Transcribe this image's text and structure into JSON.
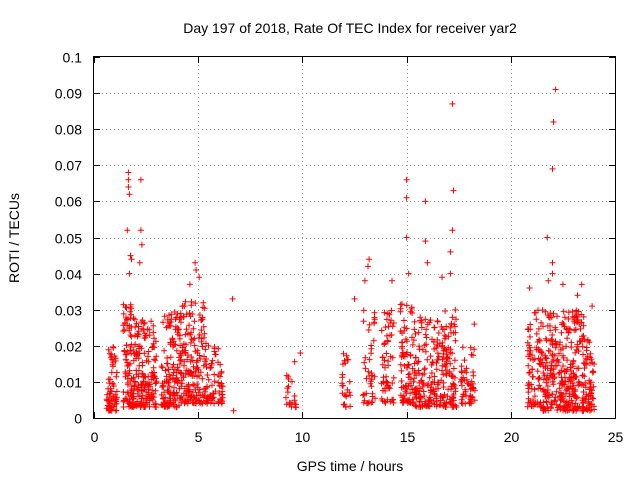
{
  "chart_data": {
    "type": "scatter",
    "title": "Day 197 of 2018, Rate Of TEC Index for receiver yar2",
    "xlabel": "GPS time / hours",
    "ylabel": "ROTI / TECUs",
    "xlim": [
      0,
      25
    ],
    "ylim": [
      0,
      0.1
    ],
    "xticks": [
      0,
      5,
      10,
      15,
      20,
      25
    ],
    "xtick_labels": [
      "0",
      "5",
      "10",
      "15",
      "20",
      "25"
    ],
    "yticks": [
      0,
      0.01,
      0.02,
      0.03,
      0.04,
      0.05,
      0.06,
      0.07,
      0.08,
      0.09,
      0.1
    ],
    "ytick_labels": [
      "0",
      "0.01",
      "0.02",
      "0.03",
      "0.04",
      "0.05",
      "0.06",
      "0.07",
      "0.08",
      "0.09",
      "0.1"
    ],
    "grid": true,
    "marker": "+",
    "color": "#ff0000",
    "dense_clusters": [
      {
        "x_range": [
          0.6,
          1.1
        ],
        "y_range": [
          0.002,
          0.02
        ],
        "count": 70
      },
      {
        "x_range": [
          1.4,
          2.0
        ],
        "y_range": [
          0.003,
          0.032
        ],
        "count": 110
      },
      {
        "x_range": [
          2.0,
          3.0
        ],
        "y_range": [
          0.003,
          0.028
        ],
        "count": 150
      },
      {
        "x_range": [
          3.2,
          4.2
        ],
        "y_range": [
          0.003,
          0.03
        ],
        "count": 150
      },
      {
        "x_range": [
          4.2,
          5.4
        ],
        "y_range": [
          0.004,
          0.033
        ],
        "count": 160
      },
      {
        "x_range": [
          5.4,
          6.2
        ],
        "y_range": [
          0.004,
          0.02
        ],
        "count": 60
      },
      {
        "x_range": [
          9.2,
          9.7
        ],
        "y_range": [
          0.003,
          0.016
        ],
        "count": 20
      },
      {
        "x_range": [
          11.9,
          12.3
        ],
        "y_range": [
          0.003,
          0.02
        ],
        "count": 25
      },
      {
        "x_range": [
          12.9,
          13.5
        ],
        "y_range": [
          0.004,
          0.03
        ],
        "count": 40
      },
      {
        "x_range": [
          13.8,
          14.4
        ],
        "y_range": [
          0.004,
          0.03
        ],
        "count": 60
      },
      {
        "x_range": [
          14.7,
          15.4
        ],
        "y_range": [
          0.004,
          0.032
        ],
        "count": 90
      },
      {
        "x_range": [
          15.4,
          16.4
        ],
        "y_range": [
          0.003,
          0.028
        ],
        "count": 110
      },
      {
        "x_range": [
          16.4,
          17.4
        ],
        "y_range": [
          0.003,
          0.03
        ],
        "count": 130
      },
      {
        "x_range": [
          17.6,
          18.3
        ],
        "y_range": [
          0.004,
          0.02
        ],
        "count": 55
      },
      {
        "x_range": [
          20.8,
          21.5
        ],
        "y_range": [
          0.003,
          0.03
        ],
        "count": 80
      },
      {
        "x_range": [
          21.5,
          22.5
        ],
        "y_range": [
          0.002,
          0.03
        ],
        "count": 140
      },
      {
        "x_range": [
          22.5,
          23.5
        ],
        "y_range": [
          0.002,
          0.03
        ],
        "count": 170
      },
      {
        "x_range": [
          23.5,
          24.0
        ],
        "y_range": [
          0.002,
          0.022
        ],
        "count": 60
      }
    ],
    "notable_points": [
      {
        "x": 1.65,
        "y": 0.068
      },
      {
        "x": 1.65,
        "y": 0.066
      },
      {
        "x": 1.65,
        "y": 0.064
      },
      {
        "x": 1.7,
        "y": 0.062
      },
      {
        "x": 2.25,
        "y": 0.066
      },
      {
        "x": 1.6,
        "y": 0.052
      },
      {
        "x": 2.25,
        "y": 0.052
      },
      {
        "x": 2.3,
        "y": 0.048
      },
      {
        "x": 1.75,
        "y": 0.045
      },
      {
        "x": 1.8,
        "y": 0.044
      },
      {
        "x": 1.7,
        "y": 0.04
      },
      {
        "x": 2.2,
        "y": 0.043
      },
      {
        "x": 4.85,
        "y": 0.043
      },
      {
        "x": 4.9,
        "y": 0.041
      },
      {
        "x": 5.05,
        "y": 0.039
      },
      {
        "x": 4.6,
        "y": 0.037
      },
      {
        "x": 6.65,
        "y": 0.033
      },
      {
        "x": 9.9,
        "y": 0.018
      },
      {
        "x": 13.2,
        "y": 0.044
      },
      {
        "x": 13.15,
        "y": 0.042
      },
      {
        "x": 13.0,
        "y": 0.038
      },
      {
        "x": 12.5,
        "y": 0.033
      },
      {
        "x": 15.0,
        "y": 0.066
      },
      {
        "x": 15.0,
        "y": 0.061
      },
      {
        "x": 15.9,
        "y": 0.06
      },
      {
        "x": 15.0,
        "y": 0.05
      },
      {
        "x": 15.9,
        "y": 0.049
      },
      {
        "x": 16.0,
        "y": 0.043
      },
      {
        "x": 15.1,
        "y": 0.04
      },
      {
        "x": 14.3,
        "y": 0.038
      },
      {
        "x": 17.2,
        "y": 0.087
      },
      {
        "x": 17.25,
        "y": 0.063
      },
      {
        "x": 17.2,
        "y": 0.052
      },
      {
        "x": 17.1,
        "y": 0.046
      },
      {
        "x": 16.7,
        "y": 0.039
      },
      {
        "x": 17.1,
        "y": 0.04
      },
      {
        "x": 18.25,
        "y": 0.026
      },
      {
        "x": 22.15,
        "y": 0.091
      },
      {
        "x": 22.05,
        "y": 0.082
      },
      {
        "x": 22.0,
        "y": 0.069
      },
      {
        "x": 21.75,
        "y": 0.05
      },
      {
        "x": 22.0,
        "y": 0.043
      },
      {
        "x": 22.0,
        "y": 0.04
      },
      {
        "x": 22.5,
        "y": 0.037
      },
      {
        "x": 21.8,
        "y": 0.038
      },
      {
        "x": 20.9,
        "y": 0.036
      },
      {
        "x": 23.4,
        "y": 0.037
      },
      {
        "x": 23.2,
        "y": 0.034
      },
      {
        "x": 23.9,
        "y": 0.031
      },
      {
        "x": 23.5,
        "y": 0.028
      },
      {
        "x": 6.7,
        "y": 0.002
      },
      {
        "x": 5.2,
        "y": 0.004
      },
      {
        "x": 9.7,
        "y": 0.003
      },
      {
        "x": 23.8,
        "y": 0.002
      }
    ]
  }
}
